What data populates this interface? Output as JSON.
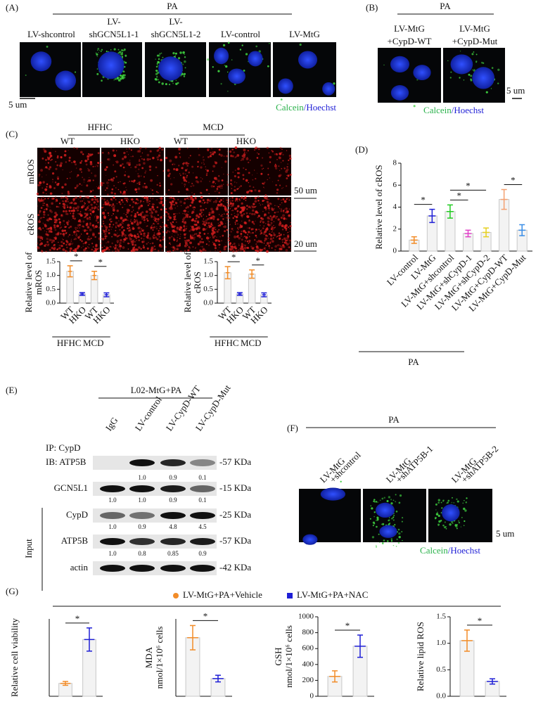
{
  "panels": {
    "A": {
      "label": "(A)",
      "group": "PA",
      "columns": [
        [
          "LV-shcontrol"
        ],
        [
          "LV-",
          "shGCN5L1-1"
        ],
        [
          "LV-",
          "shGCN5L1-2"
        ],
        [
          "LV-control"
        ],
        [
          "LV-MtG"
        ]
      ],
      "scale": "5 um",
      "stain": [
        "Calcein",
        "/Hoechst"
      ]
    },
    "B": {
      "label": "(B)",
      "group": "PA",
      "columns": [
        [
          "LV-MtG",
          "+CypD-WT"
        ],
        [
          "LV-MtG",
          "+CypD-Mut"
        ]
      ],
      "scale": "5 um",
      "stain": [
        "Calcein",
        "/Hoechst"
      ]
    },
    "C": {
      "label": "(C)",
      "groups": [
        "HFHC",
        "MCD"
      ],
      "columns": [
        "WT",
        "HKO",
        "WT",
        "HKO"
      ],
      "rows": [
        "mROS",
        "cROS"
      ],
      "scales": [
        "50 um",
        "20 um"
      ]
    },
    "D": {
      "label": "(D)"
    },
    "E": {
      "label": "(E)",
      "group": "L02-MtG+PA",
      "lanes": [
        "IgG",
        "LV-control",
        "LV-CypD-WT",
        "LV-CypD-Mut"
      ],
      "rows": [
        {
          "label": [
            "IP: CypD",
            "IB: ATP5B"
          ],
          "size": "-57 KDa",
          "quant": [
            "1.0",
            "0.9",
            "0.1"
          ]
        },
        {
          "label": [
            "GCN5L1"
          ],
          "size": "-15 KDa",
          "quant": [
            "1.0",
            "1.0",
            "0.9",
            "0.1"
          ]
        },
        {
          "label": [
            "CypD"
          ],
          "size": "-25 KDa",
          "quant": [
            "1.0",
            "0.9",
            "4.8",
            "4.5"
          ]
        },
        {
          "label": [
            "ATP5B"
          ],
          "size": "-57 KDa",
          "quant": [
            "1.0",
            "0.8",
            "0.85",
            "0.9"
          ]
        },
        {
          "label": [
            "actin"
          ],
          "size": "-42 KDa",
          "quant": []
        }
      ],
      "input": "Input"
    },
    "F": {
      "label": "(F)",
      "group": "PA",
      "columns": [
        [
          "LV-MtG",
          "+shcontrol"
        ],
        [
          "LV-MtG",
          "+shATP5B-1"
        ],
        [
          "LV-MtG",
          "+shATP5B-2"
        ]
      ],
      "scale": "5 um",
      "stain": [
        "Calcein",
        "/Hoechst"
      ]
    },
    "G": {
      "label": "(G)",
      "legend": [
        {
          "name": "LV-MtG+PA+Vehicle",
          "color": "#f28c28"
        },
        {
          "name": "LV-MtG+PA+NAC",
          "color": "#1f1fd6"
        }
      ]
    }
  },
  "chart_data": [
    {
      "type": "bar",
      "ylabel": [
        "Relative level of",
        "mROS"
      ],
      "categories": [
        "WT",
        "HKO",
        "WT",
        "HKO"
      ],
      "groups": [
        "HFHC",
        "MCD"
      ],
      "values": [
        1.15,
        0.33,
        1.0,
        0.3
      ],
      "errors": [
        0.2,
        0.05,
        0.15,
        0.07
      ],
      "colors": [
        "#f28c28",
        "#1f1fd6",
        "#f28c28",
        "#1f1fd6"
      ],
      "ylim": [
        0,
        1.5
      ],
      "yticks": [
        {
          "value": 0,
          "label": "0.0"
        },
        0.5,
        {
          "value": 1,
          "label": "1.0"
        },
        1.5
      ],
      "significance": [
        "*",
        "*"
      ]
    },
    {
      "type": "bar",
      "ylabel": [
        "Relative level of",
        "cROS"
      ],
      "categories": [
        "WT",
        "HKO",
        "WT",
        "HKO"
      ],
      "groups": [
        "HFHC",
        "MCD"
      ],
      "values": [
        1.1,
        0.33,
        1.05,
        0.3
      ],
      "errors": [
        0.22,
        0.05,
        0.15,
        0.07
      ],
      "colors": [
        "#f28c28",
        "#1f1fd6",
        "#f28c28",
        "#1f1fd6"
      ],
      "ylim": [
        0,
        1.5
      ],
      "yticks": [
        {
          "value": 0,
          "label": "0.0"
        },
        0.5,
        {
          "value": 1,
          "label": "1.0"
        },
        1.5
      ],
      "significance": [
        "*",
        "*"
      ]
    },
    {
      "type": "bar",
      "ylabel": [
        "Relative level of cROS"
      ],
      "categories": [
        "LV-control",
        "LV-MtG",
        "LV-MtG+shcontrol",
        "LV-MtG+shCypD-1",
        "LV-MtG+shCypD-2",
        "LV-MtG+CypD-WT",
        "LV-MtG+CypD-Mut"
      ],
      "group": "PA",
      "values": [
        1.0,
        3.2,
        3.6,
        1.6,
        1.7,
        4.7,
        1.9
      ],
      "errors": [
        0.3,
        0.6,
        0.6,
        0.3,
        0.4,
        0.9,
        0.5
      ],
      "colors": [
        "#f28c28",
        "#1f1fd6",
        "#22cc22",
        "#e040c8",
        "#e6d020",
        "#f4a070",
        "#3a8ee6"
      ],
      "ylim": [
        0,
        8
      ],
      "yticks": [
        0,
        2,
        4,
        6,
        8
      ],
      "significance": [
        "*",
        "*",
        "*",
        "*"
      ]
    },
    {
      "type": "bar",
      "ylabel": [
        "Relative cell viability"
      ],
      "values": [
        1.0,
        4.4
      ],
      "errors": [
        0.15,
        0.9
      ],
      "colors": [
        "#f28c28",
        "#1f1fd6"
      ],
      "ylim": [
        0,
        6
      ],
      "significance": [
        "*"
      ]
    },
    {
      "type": "bar",
      "ylabel": [
        "MDA",
        "nmol/1×10⁶ cells"
      ],
      "values": [
        5.3,
        1.6
      ],
      "errors": [
        1.1,
        0.3
      ],
      "colors": [
        "#f28c28",
        "#1f1fd6"
      ],
      "ylim": [
        0,
        7
      ],
      "significance": [
        "*"
      ]
    },
    {
      "type": "bar",
      "ylabel": [
        "GSH",
        "nmol/1×10⁶ cells"
      ],
      "values": [
        250,
        630
      ],
      "errors": [
        70,
        140
      ],
      "colors": [
        "#f28c28",
        "#1f1fd6"
      ],
      "ylim": [
        0,
        1000
      ],
      "yticks": [
        0,
        200,
        400,
        600,
        800,
        1000
      ],
      "significance": [
        "*"
      ]
    },
    {
      "type": "bar",
      "ylabel": [
        "Relative lipid ROS"
      ],
      "values": [
        1.05,
        0.28
      ],
      "errors": [
        0.2,
        0.05
      ],
      "colors": [
        "#f28c28",
        "#1f1fd6"
      ],
      "ylim": [
        0,
        1.5
      ],
      "yticks": [
        {
          "value": 0,
          "label": "0.0"
        },
        0.5,
        {
          "value": 1,
          "label": "1.0"
        },
        1.5
      ],
      "significance": [
        "*"
      ]
    }
  ]
}
